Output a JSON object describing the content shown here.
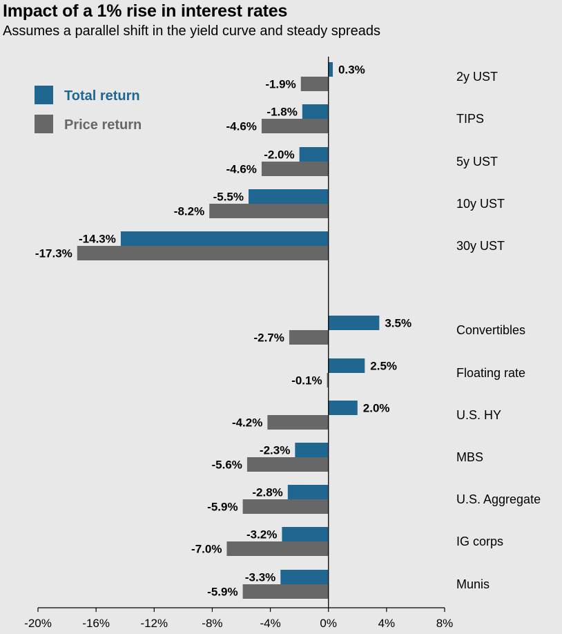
{
  "header": {
    "title": "Impact of a 1% rise in interest rates",
    "subtitle": "Assumes a parallel shift in the yield curve and steady spreads"
  },
  "colors": {
    "total_return": "#1f6690",
    "price_return": "#676767",
    "legend_total_text": "#1f6690",
    "legend_price_text": "#676767"
  },
  "chart_data": {
    "type": "bar",
    "orientation": "horizontal",
    "title": "Impact of a 1% rise in interest rates",
    "subtitle": "Assumes a parallel shift in the yield curve and steady spreads",
    "categories": [
      "2y UST",
      "TIPS",
      "5y UST",
      "10y UST",
      "30y UST",
      "Convertibles",
      "Floating rate",
      "U.S. HY",
      "MBS",
      "U.S. Aggregate",
      "IG corps",
      "Munis"
    ],
    "series": [
      {
        "name": "Total return",
        "values": [
          0.3,
          -1.8,
          -2.0,
          -5.5,
          -14.3,
          3.5,
          2.5,
          2.0,
          -2.3,
          -2.8,
          -3.2,
          -3.3
        ],
        "labels": [
          "0.3%",
          "-1.8%",
          "-2.0%",
          "-5.5%",
          "-14.3%",
          "3.5%",
          "2.5%",
          "2.0%",
          "-2.3%",
          "-2.8%",
          "-3.2%",
          "-3.3%"
        ]
      },
      {
        "name": "Price return",
        "values": [
          -1.9,
          -4.6,
          -4.6,
          -8.2,
          -17.3,
          -2.7,
          -0.1,
          -4.2,
          -5.6,
          -5.9,
          -7.0,
          -5.9
        ],
        "labels": [
          "-1.9%",
          "-4.6%",
          "-4.6%",
          "-8.2%",
          "-17.3%",
          "-2.7%",
          "-0.1%",
          "-4.2%",
          "-5.6%",
          "-5.9%",
          "-7.0%",
          "-5.9%"
        ]
      }
    ],
    "xlim": [
      -20,
      8
    ],
    "xticks": [
      -20,
      -16,
      -12,
      -8,
      -4,
      0,
      4,
      8
    ],
    "xtick_labels": [
      "-20%",
      "-16%",
      "-12%",
      "-8%",
      "-4%",
      "0%",
      "4%",
      "8%"
    ],
    "legend": {
      "position": "top-left",
      "entries": [
        "Total return",
        "Price return"
      ]
    },
    "grid": false
  }
}
